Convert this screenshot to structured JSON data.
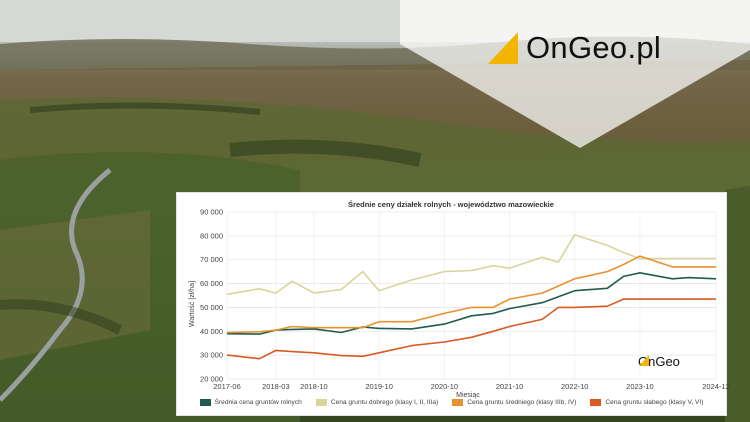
{
  "brand": {
    "logo_text": "OnGeo.pl",
    "inner_logo_text": "OnGeo",
    "accent": "#f5b400"
  },
  "chart_data": {
    "type": "line",
    "title": "Średnie ceny działek rolnych - województwo mazowieckie",
    "xlabel": "Miesiąc",
    "ylabel": "Wartość [zł/ha]",
    "ylim": [
      20000,
      90000
    ],
    "yticks": [
      "20 000",
      "30 000",
      "40 000",
      "50 000",
      "60 000",
      "70 000",
      "80 000",
      "90 000"
    ],
    "xticks": [
      "2017-06",
      "2018-03",
      "2018-10",
      "2019-10",
      "2020-10",
      "2021-10",
      "2022-10",
      "2023-10",
      "2024-12"
    ],
    "x": [
      "2017-06",
      "2017-12",
      "2018-03",
      "2018-06",
      "2018-10",
      "2019-03",
      "2019-07",
      "2019-10",
      "2020-04",
      "2020-10",
      "2021-03",
      "2021-07",
      "2021-10",
      "2022-04",
      "2022-07",
      "2022-10",
      "2023-04",
      "2023-07",
      "2023-10",
      "2024-04",
      "2024-07",
      "2024-12"
    ],
    "grid": true,
    "legend_position": "bottom",
    "series": [
      {
        "name": "Średnia cena gruntów rolnych",
        "color": "#1f5c4f",
        "values": [
          39000,
          38800,
          40500,
          40800,
          41000,
          39500,
          41800,
          41200,
          41000,
          43000,
          46500,
          47500,
          49500,
          52000,
          54500,
          57000,
          58000,
          63000,
          64500,
          62000,
          62500,
          62000
        ]
      },
      {
        "name": "Cena gruntu dobrego (klasy I, II, IIIa)",
        "color": "#d8d59a",
        "values": [
          55500,
          57800,
          56000,
          61000,
          56000,
          57500,
          65000,
          57000,
          61500,
          65000,
          65500,
          67500,
          66500,
          71000,
          69000,
          80500,
          76000,
          73000,
          70500,
          70500,
          70500,
          70500
        ]
      },
      {
        "name": "Cena gruntu średniego (klasy IIIb, IV)",
        "color": "#e8922f",
        "values": [
          39500,
          39800,
          40500,
          42000,
          41500,
          41500,
          41500,
          44000,
          44000,
          47500,
          50000,
          50000,
          53500,
          56000,
          59000,
          62000,
          65000,
          68000,
          71500,
          67000,
          67000,
          67000
        ]
      },
      {
        "name": "Cena gruntu słabego (klasy V, VI)",
        "color": "#d95a22",
        "values": [
          30000,
          28500,
          32000,
          31500,
          31000,
          29800,
          29500,
          31000,
          34000,
          35500,
          37500,
          40000,
          42000,
          45000,
          50000,
          50000,
          50500,
          53500,
          53500,
          53500,
          53500,
          53500
        ]
      }
    ]
  }
}
